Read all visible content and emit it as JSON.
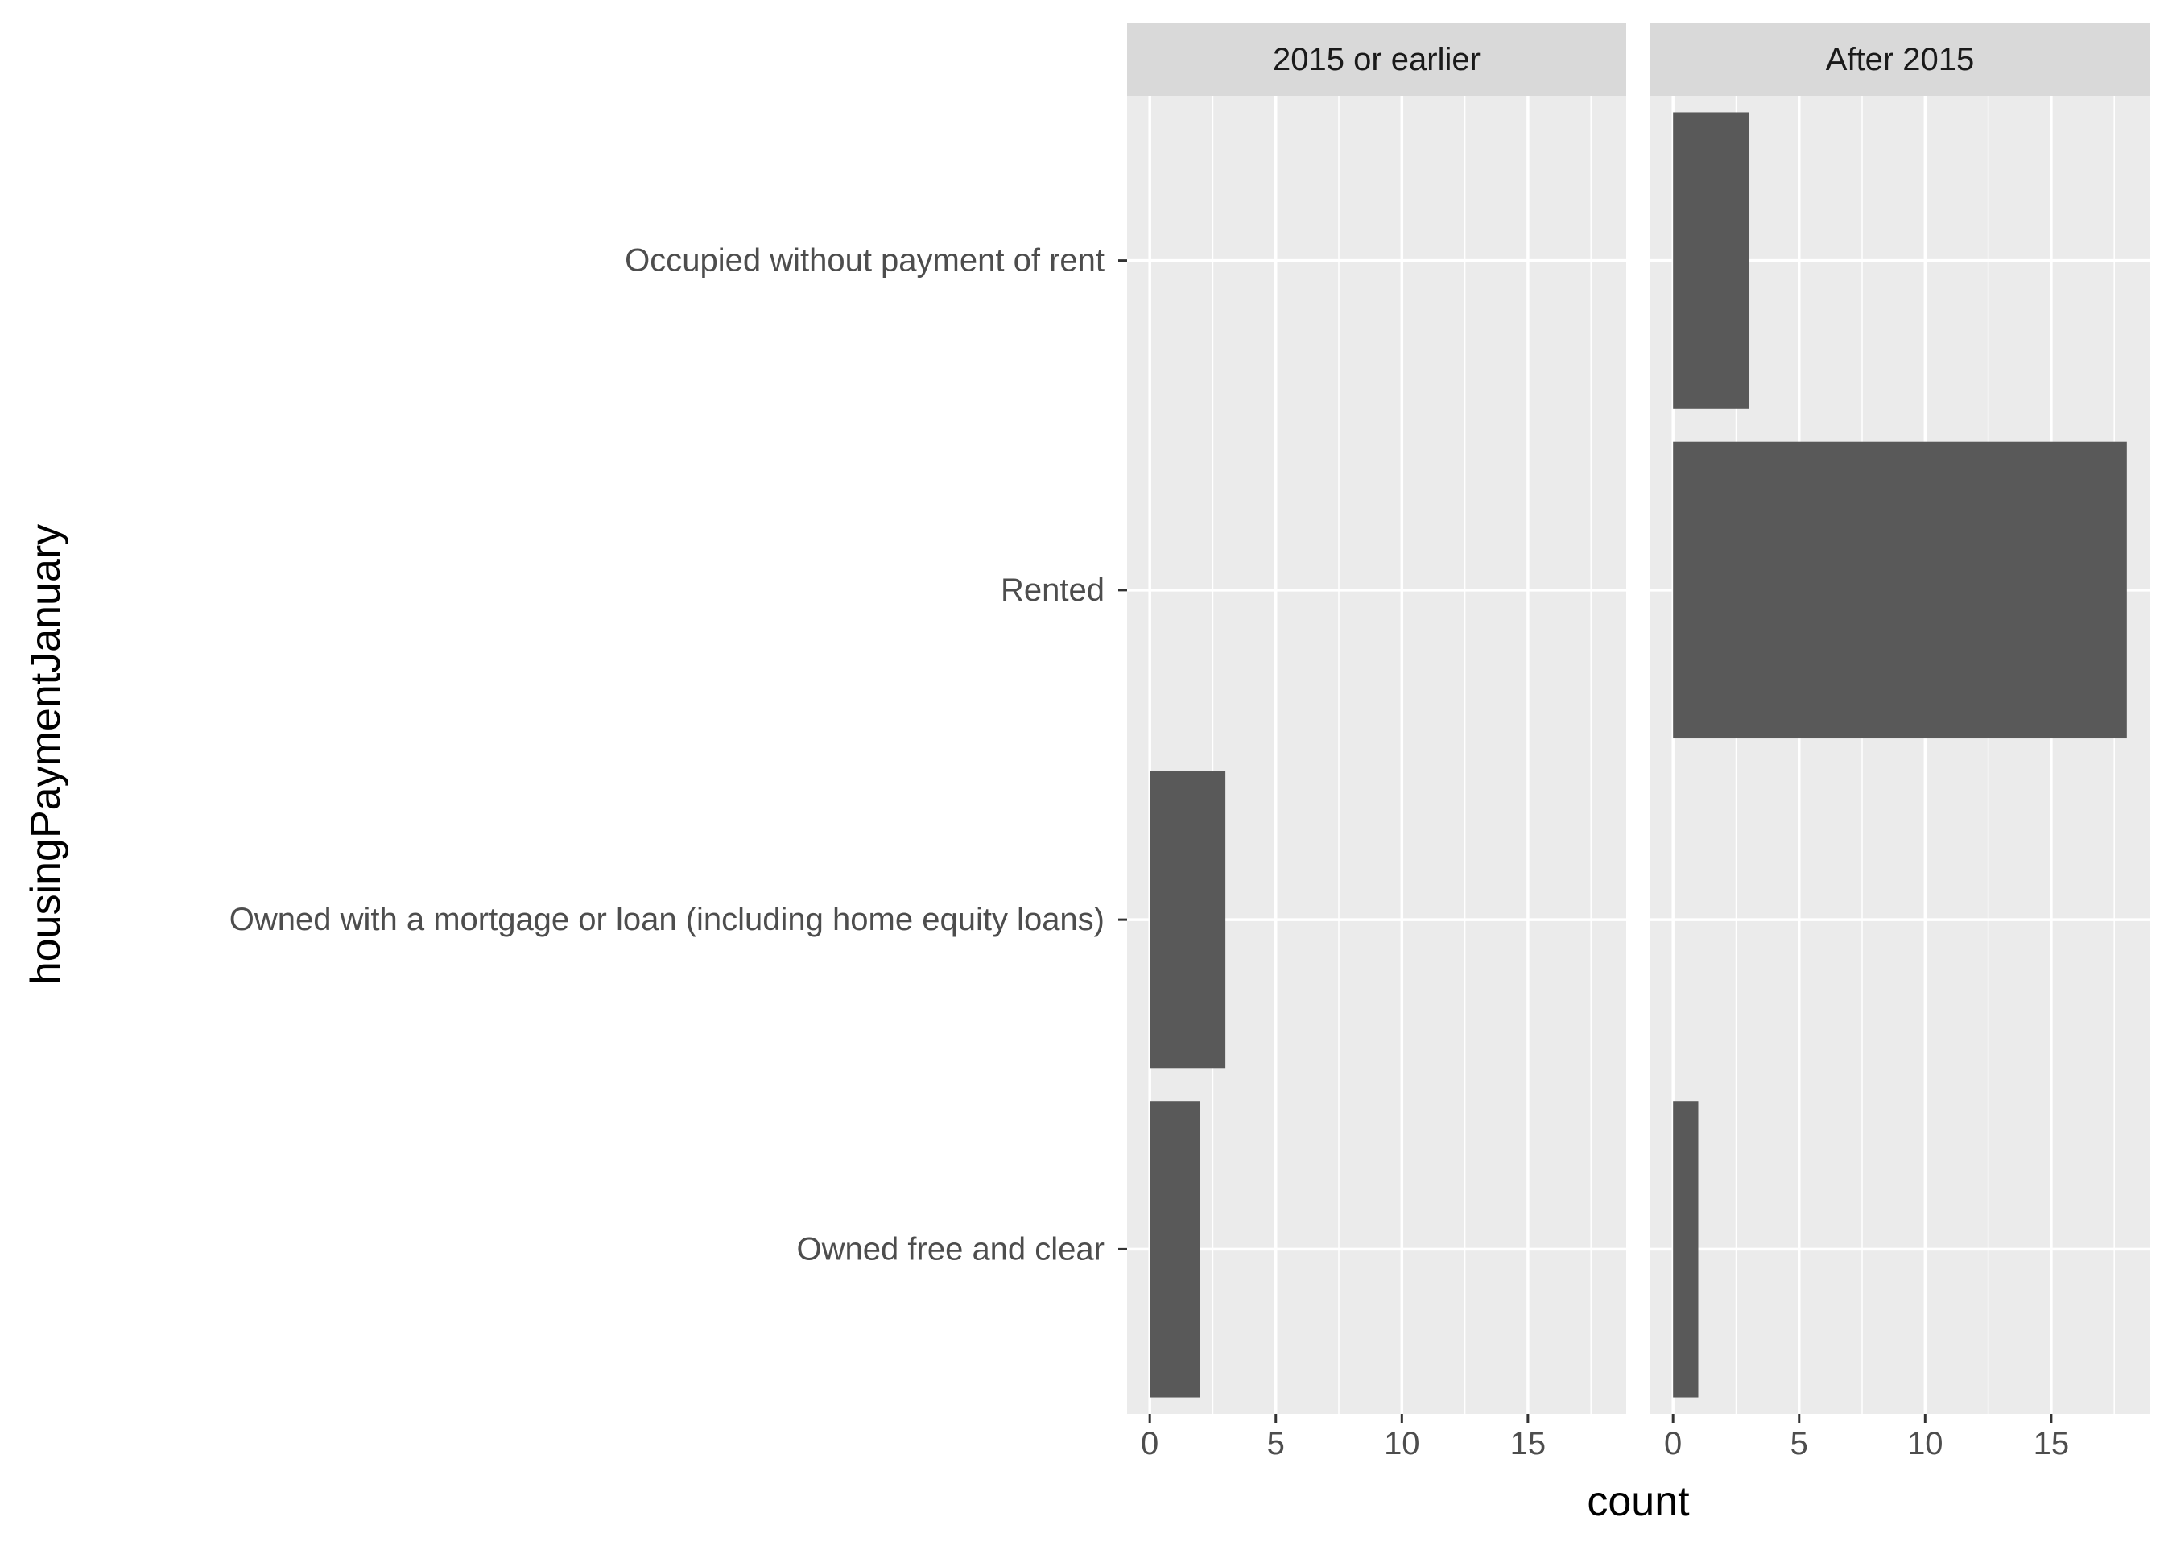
{
  "chart_data": {
    "type": "bar",
    "orientation": "horizontal",
    "facet_by": [
      "2015 or earlier",
      "After 2015"
    ],
    "categories": [
      "Occupied without payment of rent",
      "Rented",
      "Owned with a mortgage or loan (including home equity loans)",
      "Owned free and clear"
    ],
    "series": [
      {
        "facet": "2015 or earlier",
        "values": [
          0,
          0,
          3,
          2
        ]
      },
      {
        "facet": "After 2015",
        "values": [
          3,
          18,
          0,
          1
        ]
      }
    ],
    "xlabel": "count",
    "ylabel": "housingPaymentJanuary",
    "xlim": [
      -0.9,
      18.9
    ],
    "xticks": [
      0,
      5,
      10,
      15
    ],
    "grid": true,
    "colors": {
      "bar": "#595959",
      "panel": "#ebebeb",
      "grid": "#ffffff",
      "strip": "#d9d9d9",
      "tick_text": "#4d4d4d",
      "tick_mark": "#333333"
    }
  }
}
